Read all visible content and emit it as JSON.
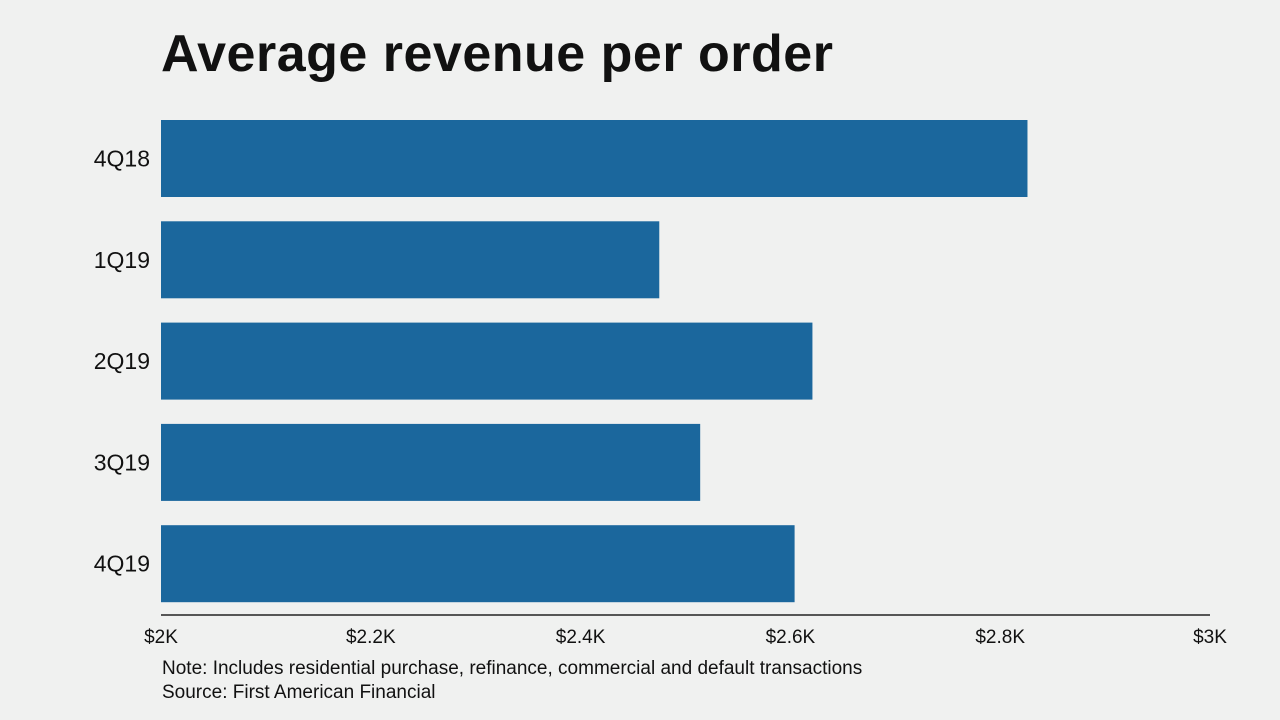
{
  "chart_data": {
    "type": "bar",
    "orientation": "horizontal",
    "title": "Average revenue per order",
    "categories": [
      "4Q18",
      "1Q19",
      "2Q19",
      "3Q19",
      "4Q19"
    ],
    "values": [
      2826,
      2475,
      2621,
      2514,
      2604
    ],
    "xlabel": "",
    "ylabel": "",
    "xlim": [
      2000,
      3000
    ],
    "x_ticks": [
      2000,
      2200,
      2400,
      2600,
      2800,
      3000
    ],
    "x_tick_labels": [
      "$2K",
      "$2.2K",
      "$2.4K",
      "$2.6K",
      "$2.8K",
      "$3K"
    ],
    "grid": false,
    "bar_color": "#1b679d"
  },
  "footer": {
    "note": "Note: Includes residential purchase, refinance, commercial and default transactions",
    "source": "Source: First American Financial"
  }
}
